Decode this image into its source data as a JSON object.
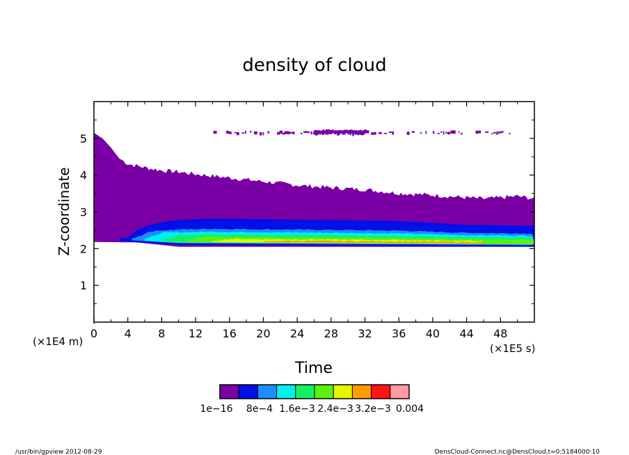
{
  "chart_data": {
    "type": "heatmap",
    "title": "density of cloud",
    "xlabel": "Time",
    "ylabel": "Z-coordinate",
    "x_unit": "(×1E5 s)",
    "y_unit": "(×1E4 m)",
    "xlim": [
      0,
      52
    ],
    "ylim": [
      0,
      6
    ],
    "x_ticks": [
      0,
      4,
      8,
      12,
      16,
      20,
      24,
      28,
      32,
      36,
      40,
      44,
      48
    ],
    "y_ticks": [
      1,
      2,
      3,
      4,
      5
    ],
    "colorbar": {
      "colors": [
        "#7a00a6",
        "#0010e6",
        "#1e8cff",
        "#00f0f0",
        "#14f064",
        "#5af014",
        "#e6f500",
        "#ff9a00",
        "#ff1414",
        "#ff9aa0"
      ],
      "labels": [
        "1e−16",
        "8e−4",
        "1.6e−3",
        "2.4e−3",
        "3.2e−3",
        "0.004"
      ]
    },
    "regions": {
      "cloud_top": [
        [
          0,
          5.15
        ],
        [
          1,
          5.0
        ],
        [
          2,
          4.75
        ],
        [
          3,
          4.45
        ],
        [
          4,
          4.3
        ],
        [
          6,
          4.2
        ],
        [
          8,
          4.12
        ],
        [
          10,
          4.08
        ],
        [
          12,
          4.02
        ],
        [
          16,
          3.92
        ],
        [
          20,
          3.82
        ],
        [
          24,
          3.72
        ],
        [
          28,
          3.65
        ],
        [
          32,
          3.6
        ],
        [
          36,
          3.5
        ],
        [
          40,
          3.45
        ],
        [
          44,
          3.38
        ],
        [
          46,
          3.35
        ],
        [
          48,
          3.38
        ],
        [
          50,
          3.42
        ],
        [
          52,
          3.35
        ]
      ],
      "cloud_base": [
        [
          0,
          2.18
        ],
        [
          5,
          2.17
        ],
        [
          10,
          2.05
        ],
        [
          52,
          2.05
        ]
      ],
      "band_blue_top": [
        [
          3,
          2.2
        ],
        [
          4,
          2.35
        ],
        [
          5,
          2.5
        ],
        [
          6,
          2.6
        ],
        [
          8,
          2.72
        ],
        [
          10,
          2.78
        ],
        [
          14,
          2.82
        ],
        [
          20,
          2.8
        ],
        [
          28,
          2.78
        ],
        [
          36,
          2.75
        ],
        [
          44,
          2.65
        ],
        [
          52,
          2.62
        ]
      ],
      "band_blue_bottom": [
        [
          3,
          2.2
        ],
        [
          10,
          2.1
        ],
        [
          52,
          2.05
        ]
      ],
      "upper_fragment_layer": {
        "z": 5.15,
        "x_range": [
          14,
          49.5
        ]
      }
    }
  },
  "footer": {
    "left": "/usr/bin/gpview  2012-08-29",
    "right": "DensCloud-Connect.nc@DensCloud,t=0:5184000:10"
  }
}
